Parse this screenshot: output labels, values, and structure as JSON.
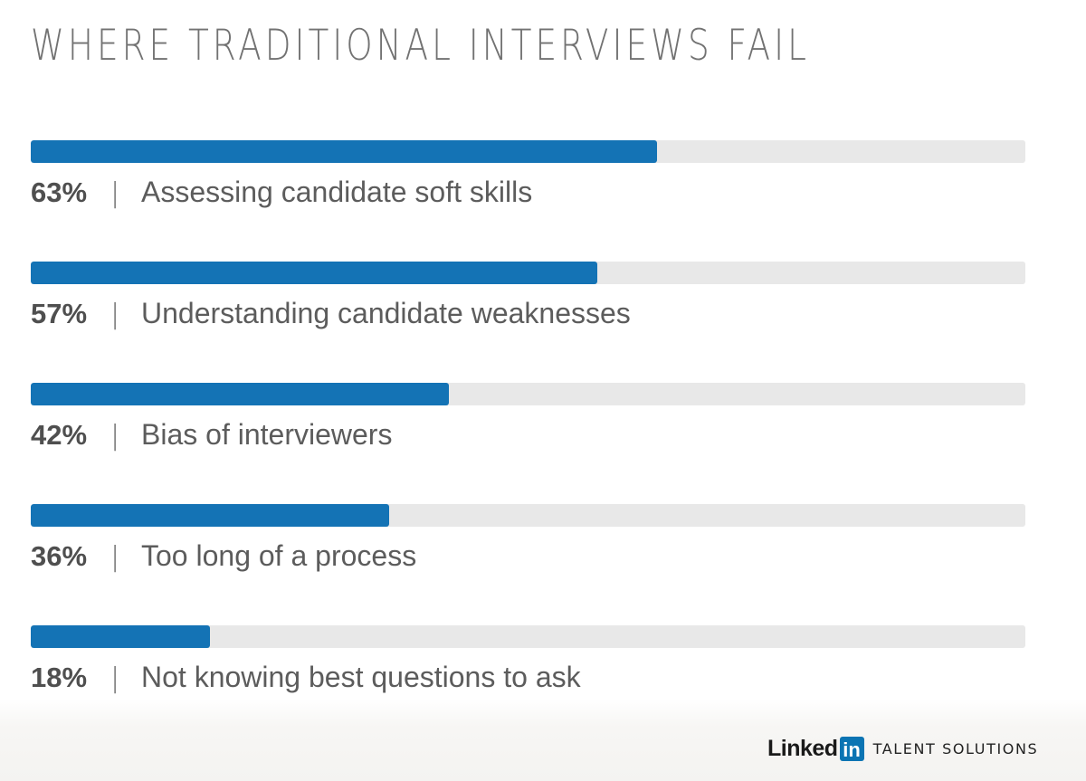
{
  "title": "WHERE TRADITIONAL INTERVIEWS FAIL",
  "colors": {
    "bar": "#1473b5",
    "track": "#e8e8e8",
    "brand_in": "#0b74b3"
  },
  "chart_data": {
    "type": "bar",
    "orientation": "horizontal",
    "title": "WHERE TRADITIONAL INTERVIEWS FAIL",
    "xlim": [
      0,
      100
    ],
    "grid": false,
    "categories": [
      "Assessing candidate soft skills",
      "Understanding candidate weaknesses",
      "Bias of interviewers",
      "Too long of a process",
      "Not knowing best questions to ask"
    ],
    "values": [
      63,
      57,
      42,
      36,
      18
    ],
    "value_labels": [
      "63%",
      "57%",
      "42%",
      "36%",
      "18%"
    ],
    "separator": "|"
  },
  "branding": {
    "wordmark": "Linked",
    "wordmark_box": "in",
    "tagline": "TALENT SOLUTIONS"
  }
}
